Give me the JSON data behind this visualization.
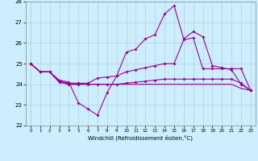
{
  "xlabel": "Windchill (Refroidissement éolien,°C)",
  "background_color": "#cceeff",
  "grid_color": "#aacccc",
  "line_color": "#990099",
  "xlim": [
    -0.5,
    23.5
  ],
  "ylim": [
    22,
    28
  ],
  "yticks": [
    22,
    23,
    24,
    25,
    26,
    27,
    28
  ],
  "xticks": [
    0,
    1,
    2,
    3,
    4,
    5,
    6,
    7,
    8,
    9,
    10,
    11,
    12,
    13,
    14,
    15,
    16,
    17,
    18,
    19,
    20,
    21,
    22,
    23
  ],
  "hours": [
    0,
    1,
    2,
    3,
    4,
    5,
    6,
    7,
    8,
    9,
    10,
    11,
    12,
    13,
    14,
    15,
    16,
    17,
    18,
    19,
    20,
    21,
    22,
    23
  ],
  "line1": [
    25.0,
    24.6,
    24.6,
    24.2,
    24.1,
    23.1,
    22.8,
    22.5,
    23.6,
    24.4,
    25.55,
    25.7,
    26.2,
    26.4,
    27.4,
    27.8,
    26.2,
    26.55,
    26.3,
    24.9,
    24.8,
    24.7,
    24.0,
    23.7
  ],
  "line2": [
    25.0,
    24.6,
    24.6,
    24.15,
    24.05,
    24.05,
    24.05,
    24.3,
    24.35,
    24.4,
    24.6,
    24.7,
    24.8,
    24.9,
    25.0,
    25.0,
    26.15,
    26.25,
    24.75,
    24.75,
    24.75,
    24.75,
    24.75,
    23.7
  ],
  "line3": [
    25.0,
    24.6,
    24.6,
    24.1,
    24.0,
    24.0,
    24.0,
    24.0,
    24.0,
    24.0,
    24.05,
    24.1,
    24.15,
    24.2,
    24.25,
    24.25,
    24.25,
    24.25,
    24.25,
    24.25,
    24.25,
    24.25,
    24.05,
    23.7
  ],
  "line4": [
    25.0,
    24.6,
    24.6,
    24.1,
    24.0,
    24.0,
    24.0,
    24.0,
    24.0,
    24.0,
    24.0,
    24.0,
    24.0,
    24.0,
    24.0,
    24.0,
    24.0,
    24.0,
    24.0,
    24.0,
    24.0,
    24.0,
    23.8,
    23.7
  ]
}
